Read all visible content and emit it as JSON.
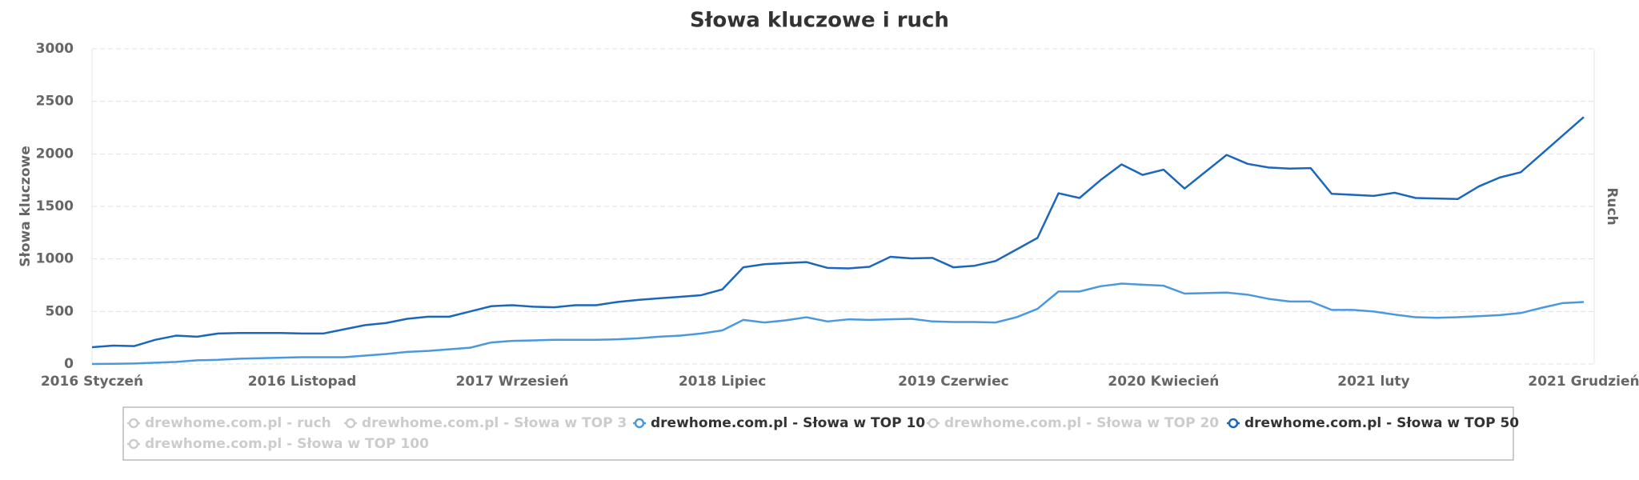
{
  "chart_data": {
    "type": "line",
    "title": "Słowa kluczowe i ruch",
    "y_label": "Słowa kluczowe",
    "y2_label": "Ruch",
    "categories": [
      "2016 Styczeń",
      null,
      null,
      null,
      null,
      null,
      null,
      null,
      null,
      null,
      "2016 Listopad",
      null,
      null,
      null,
      null,
      null,
      null,
      null,
      null,
      null,
      "2017 Wrzesień",
      null,
      null,
      null,
      null,
      null,
      null,
      null,
      null,
      null,
      "2018 Lipiec",
      null,
      null,
      null,
      null,
      null,
      null,
      null,
      null,
      null,
      null,
      "2019 Czerwiec",
      null,
      null,
      null,
      null,
      null,
      null,
      null,
      null,
      null,
      "2020 Kwiecień",
      null,
      null,
      null,
      null,
      null,
      null,
      null,
      null,
      null,
      "2021 luty",
      null,
      null,
      null,
      null,
      null,
      null,
      null,
      null,
      null,
      "2021 Grudzień"
    ],
    "ylim": [
      0,
      3000
    ],
    "yticks": [
      0,
      500,
      1000,
      1500,
      2000,
      2500,
      3000
    ],
    "grid": true,
    "series": [
      {
        "name": "drewhome.com.pl - ruch",
        "color": "#cccccc",
        "visible": false
      },
      {
        "name": "drewhome.com.pl - Słowa w TOP 3",
        "color": "#cccccc",
        "visible": false
      },
      {
        "name": "drewhome.com.pl - Słowa w TOP 10",
        "color": "#4a98e0",
        "visible": true,
        "values": [
          0,
          2,
          5,
          12,
          20,
          35,
          40,
          50,
          55,
          60,
          65,
          65,
          65,
          80,
          95,
          115,
          125,
          140,
          155,
          205,
          220,
          225,
          230,
          230,
          230,
          235,
          245,
          260,
          270,
          290,
          320,
          420,
          395,
          415,
          445,
          405,
          425,
          420,
          425,
          430,
          405,
          400,
          400,
          395,
          445,
          525,
          690,
          690,
          740,
          765,
          755,
          745,
          670,
          675,
          680,
          660,
          620,
          595,
          595,
          515,
          515,
          500,
          470,
          445,
          440,
          445,
          455,
          465,
          485,
          535,
          580,
          590
        ]
      },
      {
        "name": "drewhome.com.pl - Słowa w TOP 20",
        "color": "#cccccc",
        "visible": false
      },
      {
        "name": "drewhome.com.pl - Słowa w TOP 50",
        "color": "#1b67bb",
        "visible": true,
        "values": [
          160,
          175,
          170,
          230,
          270,
          260,
          290,
          295,
          295,
          295,
          290,
          290,
          330,
          370,
          390,
          430,
          450,
          450,
          500,
          550,
          560,
          545,
          540,
          560,
          560,
          590,
          610,
          625,
          640,
          655,
          710,
          920,
          950,
          960,
          970,
          915,
          910,
          925,
          1020,
          1005,
          1010,
          920,
          935,
          980,
          1090,
          1200,
          1625,
          1580,
          1750,
          1900,
          1800,
          1850,
          1670,
          1830,
          1990,
          1905,
          1870,
          1860,
          1865,
          1620,
          1610,
          1600,
          1630,
          1580,
          1575,
          1570,
          1690,
          1775,
          1825,
          2000,
          2175,
          2350
        ]
      },
      {
        "name": "drewhome.com.pl - Słowa w TOP 100",
        "color": "#cccccc",
        "visible": false
      }
    ]
  }
}
